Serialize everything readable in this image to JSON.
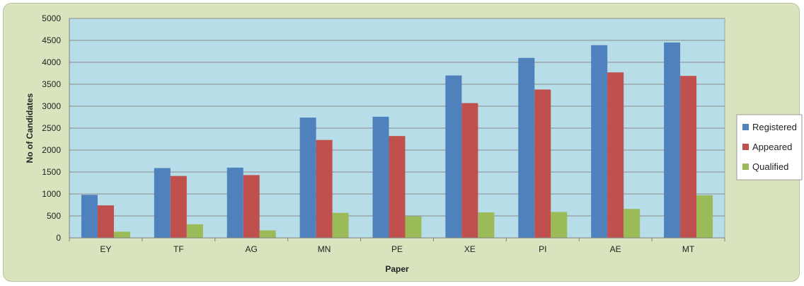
{
  "chart_data": {
    "type": "bar",
    "title": "",
    "xlabel": "Paper",
    "ylabel": "No of Candidates",
    "ylim": [
      0,
      5000
    ],
    "yticks": [
      0,
      500,
      1000,
      1500,
      2000,
      2500,
      3000,
      3500,
      4000,
      4500,
      5000
    ],
    "grid": true,
    "legend_position": "right",
    "categories": [
      "EY",
      "TF",
      "AG",
      "MN",
      "PE",
      "XE",
      "PI",
      "AE",
      "MT"
    ],
    "series": [
      {
        "name": "Registered",
        "color": "#4f81bd",
        "values": [
          980,
          1590,
          1600,
          2740,
          2760,
          3700,
          4100,
          4390,
          4450
        ]
      },
      {
        "name": "Appeared",
        "color": "#c0504d",
        "values": [
          740,
          1410,
          1430,
          2230,
          2320,
          3070,
          3380,
          3770,
          3690
        ]
      },
      {
        "name": "Qualified",
        "color": "#9bbb59",
        "values": [
          140,
          310,
          170,
          570,
          490,
          580,
          590,
          660,
          970
        ]
      }
    ]
  }
}
